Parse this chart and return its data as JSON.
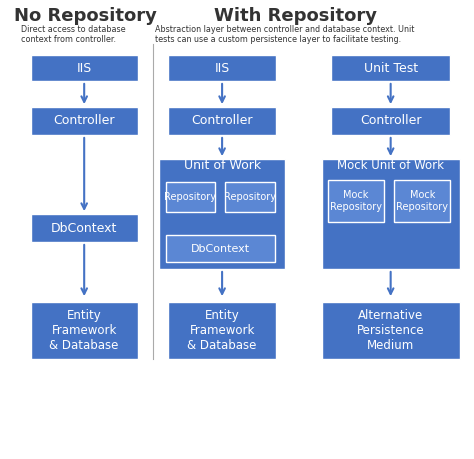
{
  "bg_color": "#ffffff",
  "box_color": "#4472c4",
  "inner_box_color": "#5b87d4",
  "text_color": "#ffffff",
  "dark_text_color": "#333333",
  "arrow_color": "#4472c4",
  "title_no_repo": "No Repository",
  "title_with_repo": "With Repository",
  "subtitle_no_repo": "Direct access to database\ncontext from controller.",
  "subtitle_with_repo": "Abstraction layer between controller and database context. Unit\ntests can use a custom persistence layer to facilitate testing.",
  "figsize": [
    4.74,
    4.59
  ],
  "dpi": 100
}
